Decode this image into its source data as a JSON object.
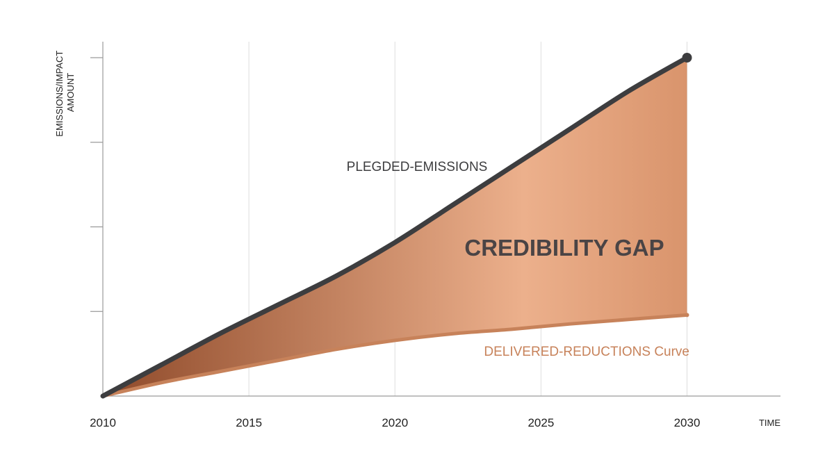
{
  "chart_data": {
    "type": "area",
    "x": [
      2010,
      2012,
      2014,
      2016,
      2018,
      2020,
      2022,
      2024,
      2026,
      2028,
      2030
    ],
    "series": [
      {
        "name": "PLEGDED-EMISSIONS",
        "values": [
          0,
          0.7,
          1.4,
          2.05,
          2.7,
          3.45,
          4.3,
          5.15,
          6.0,
          6.85,
          7.6
        ],
        "color": "#3d3d3f"
      },
      {
        "name": "DELIVERED-REDUCTIONS Curve",
        "values": [
          0,
          0.3,
          0.55,
          0.8,
          1.05,
          1.25,
          1.4,
          1.5,
          1.62,
          1.72,
          1.82
        ],
        "color": "#c7825a"
      }
    ],
    "annotations": [
      {
        "text": "CREDIBILITY GAP",
        "color": "#4a4445"
      }
    ],
    "fill_colors": {
      "dark": "#8f4a2a",
      "light": "#ecb08c"
    },
    "xticks": [
      "2010",
      "2015",
      "2020",
      "2025",
      "2030"
    ],
    "xtick_values": [
      2010,
      2015,
      2020,
      2025,
      2030
    ],
    "xlim": [
      2010,
      2033.2
    ],
    "ylim": [
      0,
      7.6
    ],
    "ytick_values": [
      1.9,
      3.8,
      5.7,
      7.6
    ],
    "ytick_labels_shown": false,
    "xlabel": "TIME",
    "ylabel": "EMISSIONS/IMPACT AMOUNT",
    "grid": "vertical"
  }
}
